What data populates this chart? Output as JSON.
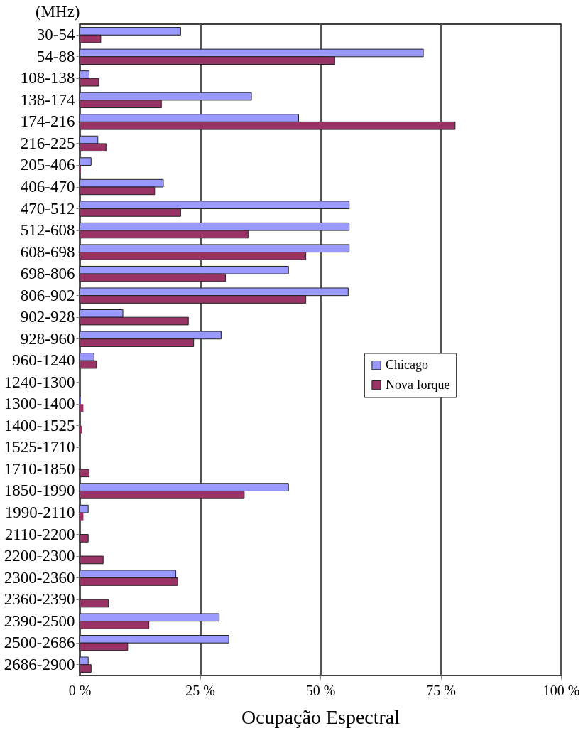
{
  "chart_data": {
    "type": "bar",
    "orientation": "horizontal",
    "ylabel": "(MHz)",
    "xlabel": "Ocupação Espectral",
    "categories": [
      "30-54",
      "54-88",
      "108-138",
      "138-174",
      "174-216",
      "216-225",
      "205-406",
      "406-470",
      "470-512",
      "512-608",
      "608-698",
      "698-806",
      "806-902",
      "902-928",
      "928-960",
      "960-1240",
      "1240-1300",
      "1300-1400",
      "1400-1525",
      "1525-1710",
      "1710-1850",
      "1850-1990",
      "1990-2110",
      "2110-2200",
      "2200-2300",
      "2300-2360",
      "2360-2390",
      "2390-2500",
      "2500-2686",
      "2686-2900"
    ],
    "series": [
      {
        "name": "Chicago",
        "color": "#9999ff",
        "values": [
          21,
          71.4,
          2,
          35.7,
          45.5,
          3.8,
          2.4,
          17.4,
          56,
          56,
          56,
          43.4,
          55.8,
          9,
          29.4,
          3,
          null,
          0.2,
          null,
          null,
          null,
          43.4,
          1.8,
          null,
          null,
          20,
          null,
          29,
          31,
          1.8
        ]
      },
      {
        "name": "Nova Iorque",
        "color": "#993366",
        "values": [
          4.4,
          53,
          4,
          17,
          78,
          5.5,
          0.3,
          15.6,
          21,
          35,
          47,
          30.3,
          47,
          22.6,
          23.7,
          3.5,
          null,
          0.8,
          0.5,
          null,
          2,
          34.2,
          0.8,
          1.8,
          4.9,
          20.4,
          6,
          14.4,
          10,
          2.4
        ]
      }
    ],
    "xlim": [
      0,
      100
    ],
    "xticks": [
      {
        "value": 0,
        "label": "0 %"
      },
      {
        "value": 25,
        "label": "25 %"
      },
      {
        "value": 50,
        "label": "50 %"
      },
      {
        "value": 75,
        "label": "75 %"
      },
      {
        "value": 100,
        "label": "100 %"
      }
    ],
    "grid": "x",
    "legend": "right"
  }
}
